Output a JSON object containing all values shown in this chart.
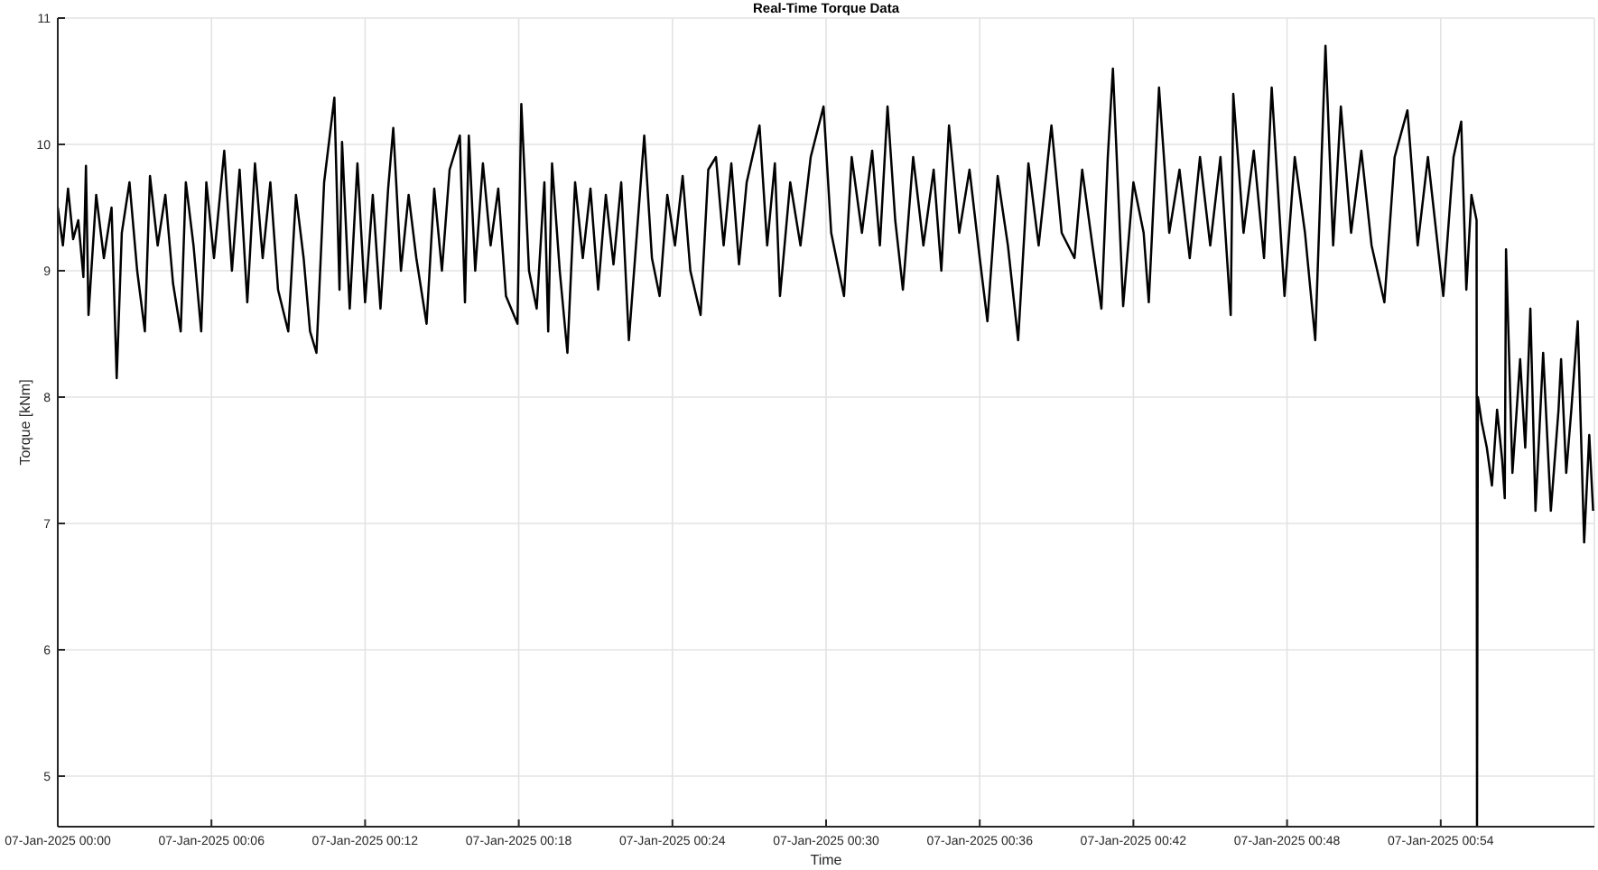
{
  "chart_data": {
    "type": "line",
    "title": "Real-Time Torque Data",
    "xlabel": "Time",
    "ylabel": "Torque [kNm]",
    "color": "#000000",
    "grid": true,
    "xlim": [
      "2025-01-07T00:00",
      "2025-01-07T01:00"
    ],
    "xticks": [
      {
        "value": "2025-01-07T00:00",
        "label": "07-Jan-2025 00:00"
      },
      {
        "value": "2025-01-07T00:06",
        "label": "07-Jan-2025 00:06"
      },
      {
        "value": "2025-01-07T00:12",
        "label": "07-Jan-2025 00:12"
      },
      {
        "value": "2025-01-07T00:18",
        "label": "07-Jan-2025 00:18"
      },
      {
        "value": "2025-01-07T00:24",
        "label": "07-Jan-2025 00:24"
      },
      {
        "value": "2025-01-07T00:30",
        "label": "07-Jan-2025 00:30"
      },
      {
        "value": "2025-01-07T00:36",
        "label": "07-Jan-2025 00:36"
      },
      {
        "value": "2025-01-07T00:42",
        "label": "07-Jan-2025 00:42"
      },
      {
        "value": "2025-01-07T00:48",
        "label": "07-Jan-2025 00:48"
      },
      {
        "value": "2025-01-07T00:54",
        "label": "07-Jan-2025 00:54"
      }
    ],
    "ylim": [
      4.6,
      11
    ],
    "yticks": [
      5,
      6,
      7,
      8,
      9,
      10,
      11
    ],
    "x": [
      "2025-01-07T00:00:00",
      "2025-01-07T00:00:12",
      "2025-01-07T00:00:24",
      "2025-01-07T00:00:36",
      "2025-01-07T00:00:48",
      "2025-01-07T00:01:00",
      "2025-01-07T00:01:06",
      "2025-01-07T00:01:12",
      "2025-01-07T00:01:30",
      "2025-01-07T00:01:48",
      "2025-01-07T00:02:06",
      "2025-01-07T00:02:18",
      "2025-01-07T00:02:30",
      "2025-01-07T00:02:48",
      "2025-01-07T00:03:06",
      "2025-01-07T00:03:24",
      "2025-01-07T00:03:36",
      "2025-01-07T00:03:54",
      "2025-01-07T00:04:12",
      "2025-01-07T00:04:30",
      "2025-01-07T00:04:48",
      "2025-01-07T00:05:00",
      "2025-01-07T00:05:18",
      "2025-01-07T00:05:36",
      "2025-01-07T00:05:48",
      "2025-01-07T00:06:06",
      "2025-01-07T00:06:30",
      "2025-01-07T00:06:48",
      "2025-01-07T00:07:06",
      "2025-01-07T00:07:24",
      "2025-01-07T00:07:42",
      "2025-01-07T00:08:00",
      "2025-01-07T00:08:18",
      "2025-01-07T00:08:36",
      "2025-01-07T00:09:00",
      "2025-01-07T00:09:18",
      "2025-01-07T00:09:36",
      "2025-01-07T00:09:51",
      "2025-01-07T00:10:06",
      "2025-01-07T00:10:24",
      "2025-01-07T00:10:48",
      "2025-01-07T00:11:00",
      "2025-01-07T00:11:06",
      "2025-01-07T00:11:24",
      "2025-01-07T00:11:42",
      "2025-01-07T00:12:00",
      "2025-01-07T00:12:18",
      "2025-01-07T00:12:36",
      "2025-01-07T00:12:54",
      "2025-01-07T00:13:06",
      "2025-01-07T00:13:24",
      "2025-01-07T00:13:42",
      "2025-01-07T00:14:00",
      "2025-01-07T00:14:24",
      "2025-01-07T00:14:42",
      "2025-01-07T00:15:00",
      "2025-01-07T00:15:18",
      "2025-01-07T00:15:42",
      "2025-01-07T00:15:54",
      "2025-01-07T00:16:03",
      "2025-01-07T00:16:18",
      "2025-01-07T00:16:36",
      "2025-01-07T00:16:54",
      "2025-01-07T00:17:12",
      "2025-01-07T00:17:30",
      "2025-01-07T00:17:57",
      "2025-01-07T00:18:06",
      "2025-01-07T00:18:24",
      "2025-01-07T00:18:42",
      "2025-01-07T00:19:00",
      "2025-01-07T00:19:09",
      "2025-01-07T00:19:18",
      "2025-01-07T00:19:36",
      "2025-01-07T00:19:54",
      "2025-01-07T00:20:12",
      "2025-01-07T00:20:30",
      "2025-01-07T00:20:48",
      "2025-01-07T00:21:06",
      "2025-01-07T00:21:24",
      "2025-01-07T00:21:42",
      "2025-01-07T00:22:00",
      "2025-01-07T00:22:18",
      "2025-01-07T00:22:54",
      "2025-01-07T00:23:12",
      "2025-01-07T00:23:30",
      "2025-01-07T00:23:48",
      "2025-01-07T00:24:06",
      "2025-01-07T00:24:24",
      "2025-01-07T00:24:42",
      "2025-01-07T00:25:06",
      "2025-01-07T00:25:24",
      "2025-01-07T00:25:42",
      "2025-01-07T00:26:00",
      "2025-01-07T00:26:18",
      "2025-01-07T00:26:36",
      "2025-01-07T00:26:54",
      "2025-01-07T00:27:24",
      "2025-01-07T00:27:42",
      "2025-01-07T00:28:00",
      "2025-01-07T00:28:12",
      "2025-01-07T00:28:36",
      "2025-01-07T00:29:00",
      "2025-01-07T00:29:24",
      "2025-01-07T00:29:54",
      "2025-01-07T00:30:12",
      "2025-01-07T00:30:42",
      "2025-01-07T00:31:00",
      "2025-01-07T00:31:24",
      "2025-01-07T00:31:48",
      "2025-01-07T00:32:06",
      "2025-01-07T00:32:24",
      "2025-01-07T00:32:42",
      "2025-01-07T00:33:00",
      "2025-01-07T00:33:24",
      "2025-01-07T00:33:48",
      "2025-01-07T00:34:12",
      "2025-01-07T00:34:30",
      "2025-01-07T00:34:48",
      "2025-01-07T00:35:12",
      "2025-01-07T00:35:36",
      "2025-01-07T00:36:00",
      "2025-01-07T00:36:18",
      "2025-01-07T00:36:42",
      "2025-01-07T00:37:06",
      "2025-01-07T00:37:30",
      "2025-01-07T00:37:54",
      "2025-01-07T00:38:18",
      "2025-01-07T00:38:48",
      "2025-01-07T00:39:12",
      "2025-01-07T00:39:42",
      "2025-01-07T00:40:00",
      "2025-01-07T00:40:24",
      "2025-01-07T00:40:45",
      "2025-01-07T00:41:00",
      "2025-01-07T00:41:12",
      "2025-01-07T00:41:36",
      "2025-01-07T00:42:00",
      "2025-01-07T00:42:24",
      "2025-01-07T00:42:36",
      "2025-01-07T00:43:00",
      "2025-01-07T00:43:24",
      "2025-01-07T00:43:48",
      "2025-01-07T00:44:12",
      "2025-01-07T00:44:36",
      "2025-01-07T00:45:00",
      "2025-01-07T00:45:24",
      "2025-01-07T00:45:48",
      "2025-01-07T00:45:54",
      "2025-01-07T00:46:18",
      "2025-01-07T00:46:42",
      "2025-01-07T00:47:06",
      "2025-01-07T00:47:24",
      "2025-01-07T00:47:54",
      "2025-01-07T00:48:18",
      "2025-01-07T00:48:42",
      "2025-01-07T00:49:06",
      "2025-01-07T00:49:30",
      "2025-01-07T00:49:48",
      "2025-01-07T00:50:06",
      "2025-01-07T00:50:30",
      "2025-01-07T00:50:54",
      "2025-01-07T00:51:18",
      "2025-01-07T00:51:48",
      "2025-01-07T00:52:12",
      "2025-01-07T00:52:42",
      "2025-01-07T00:53:06",
      "2025-01-07T00:53:30",
      "2025-01-07T00:54:06",
      "2025-01-07T00:54:30",
      "2025-01-07T00:54:48",
      "2025-01-07T00:55:00",
      "2025-01-07T00:55:12",
      "2025-01-07T00:55:24",
      "2025-01-07T00:55:25",
      "2025-01-07T00:55:27",
      "2025-01-07T00:55:36",
      "2025-01-07T00:55:48",
      "2025-01-07T00:56:00",
      "2025-01-07T00:56:12",
      "2025-01-07T00:56:24",
      "2025-01-07T00:56:30",
      "2025-01-07T00:56:33",
      "2025-01-07T00:56:48",
      "2025-01-07T00:57:06",
      "2025-01-07T00:57:18",
      "2025-01-07T00:57:30",
      "2025-01-07T00:57:42",
      "2025-01-07T00:58:00",
      "2025-01-07T00:58:18",
      "2025-01-07T00:58:36",
      "2025-01-07T00:58:42",
      "2025-01-07T00:58:54",
      "2025-01-07T00:59:06",
      "2025-01-07T00:59:21",
      "2025-01-07T00:59:36",
      "2025-01-07T00:59:48",
      "2025-01-07T00:59:57"
    ],
    "values": [
      9.5,
      9.2,
      9.65,
      9.25,
      9.4,
      8.95,
      9.83,
      8.65,
      9.6,
      9.1,
      9.5,
      8.15,
      9.3,
      9.7,
      9.0,
      8.52,
      9.75,
      9.2,
      9.6,
      8.9,
      8.52,
      9.7,
      9.2,
      8.52,
      9.7,
      9.1,
      9.95,
      9.0,
      9.8,
      8.75,
      9.85,
      9.1,
      9.7,
      8.85,
      8.52,
      9.6,
      9.1,
      8.52,
      8.35,
      9.7,
      10.37,
      8.85,
      10.02,
      8.7,
      9.85,
      8.75,
      9.6,
      8.7,
      9.65,
      10.13,
      9.0,
      9.6,
      9.1,
      8.58,
      9.65,
      9.0,
      9.8,
      10.07,
      8.75,
      10.07,
      9.0,
      9.85,
      9.2,
      9.65,
      8.8,
      8.58,
      10.32,
      9.0,
      8.7,
      9.7,
      8.52,
      9.85,
      9.0,
      8.35,
      9.7,
      9.1,
      9.65,
      8.85,
      9.6,
      9.05,
      9.7,
      8.45,
      10.07,
      9.1,
      8.8,
      9.6,
      9.2,
      9.75,
      9.0,
      8.65,
      9.8,
      9.9,
      9.2,
      9.85,
      9.05,
      9.7,
      10.15,
      9.2,
      9.85,
      8.8,
      9.7,
      9.2,
      9.9,
      10.3,
      9.3,
      8.8,
      9.9,
      9.3,
      9.95,
      9.2,
      10.3,
      9.4,
      8.85,
      9.9,
      9.2,
      9.8,
      9.0,
      10.15,
      9.3,
      9.8,
      9.1,
      8.6,
      9.75,
      9.2,
      8.45,
      9.85,
      9.2,
      10.15,
      9.3,
      9.1,
      9.8,
      9.2,
      8.7,
      9.9,
      10.6,
      8.72,
      9.7,
      9.3,
      8.75,
      10.45,
      9.3,
      9.8,
      9.1,
      9.9,
      9.2,
      9.9,
      8.65,
      10.4,
      9.3,
      9.95,
      9.1,
      10.45,
      8.8,
      9.9,
      9.3,
      8.45,
      10.78,
      9.2,
      10.3,
      9.3,
      9.95,
      9.2,
      8.75,
      9.9,
      10.27,
      9.2,
      9.9,
      8.8,
      9.9,
      10.18,
      8.85,
      9.6,
      9.4,
      4.6,
      8.0,
      7.8,
      7.6,
      7.3,
      7.9,
      7.5,
      7.2,
      9.17,
      7.4,
      8.3,
      7.6,
      8.7,
      7.1,
      8.35,
      7.1,
      7.9,
      8.3,
      7.4,
      7.9,
      8.6,
      6.85,
      7.7,
      7.1
    ]
  }
}
